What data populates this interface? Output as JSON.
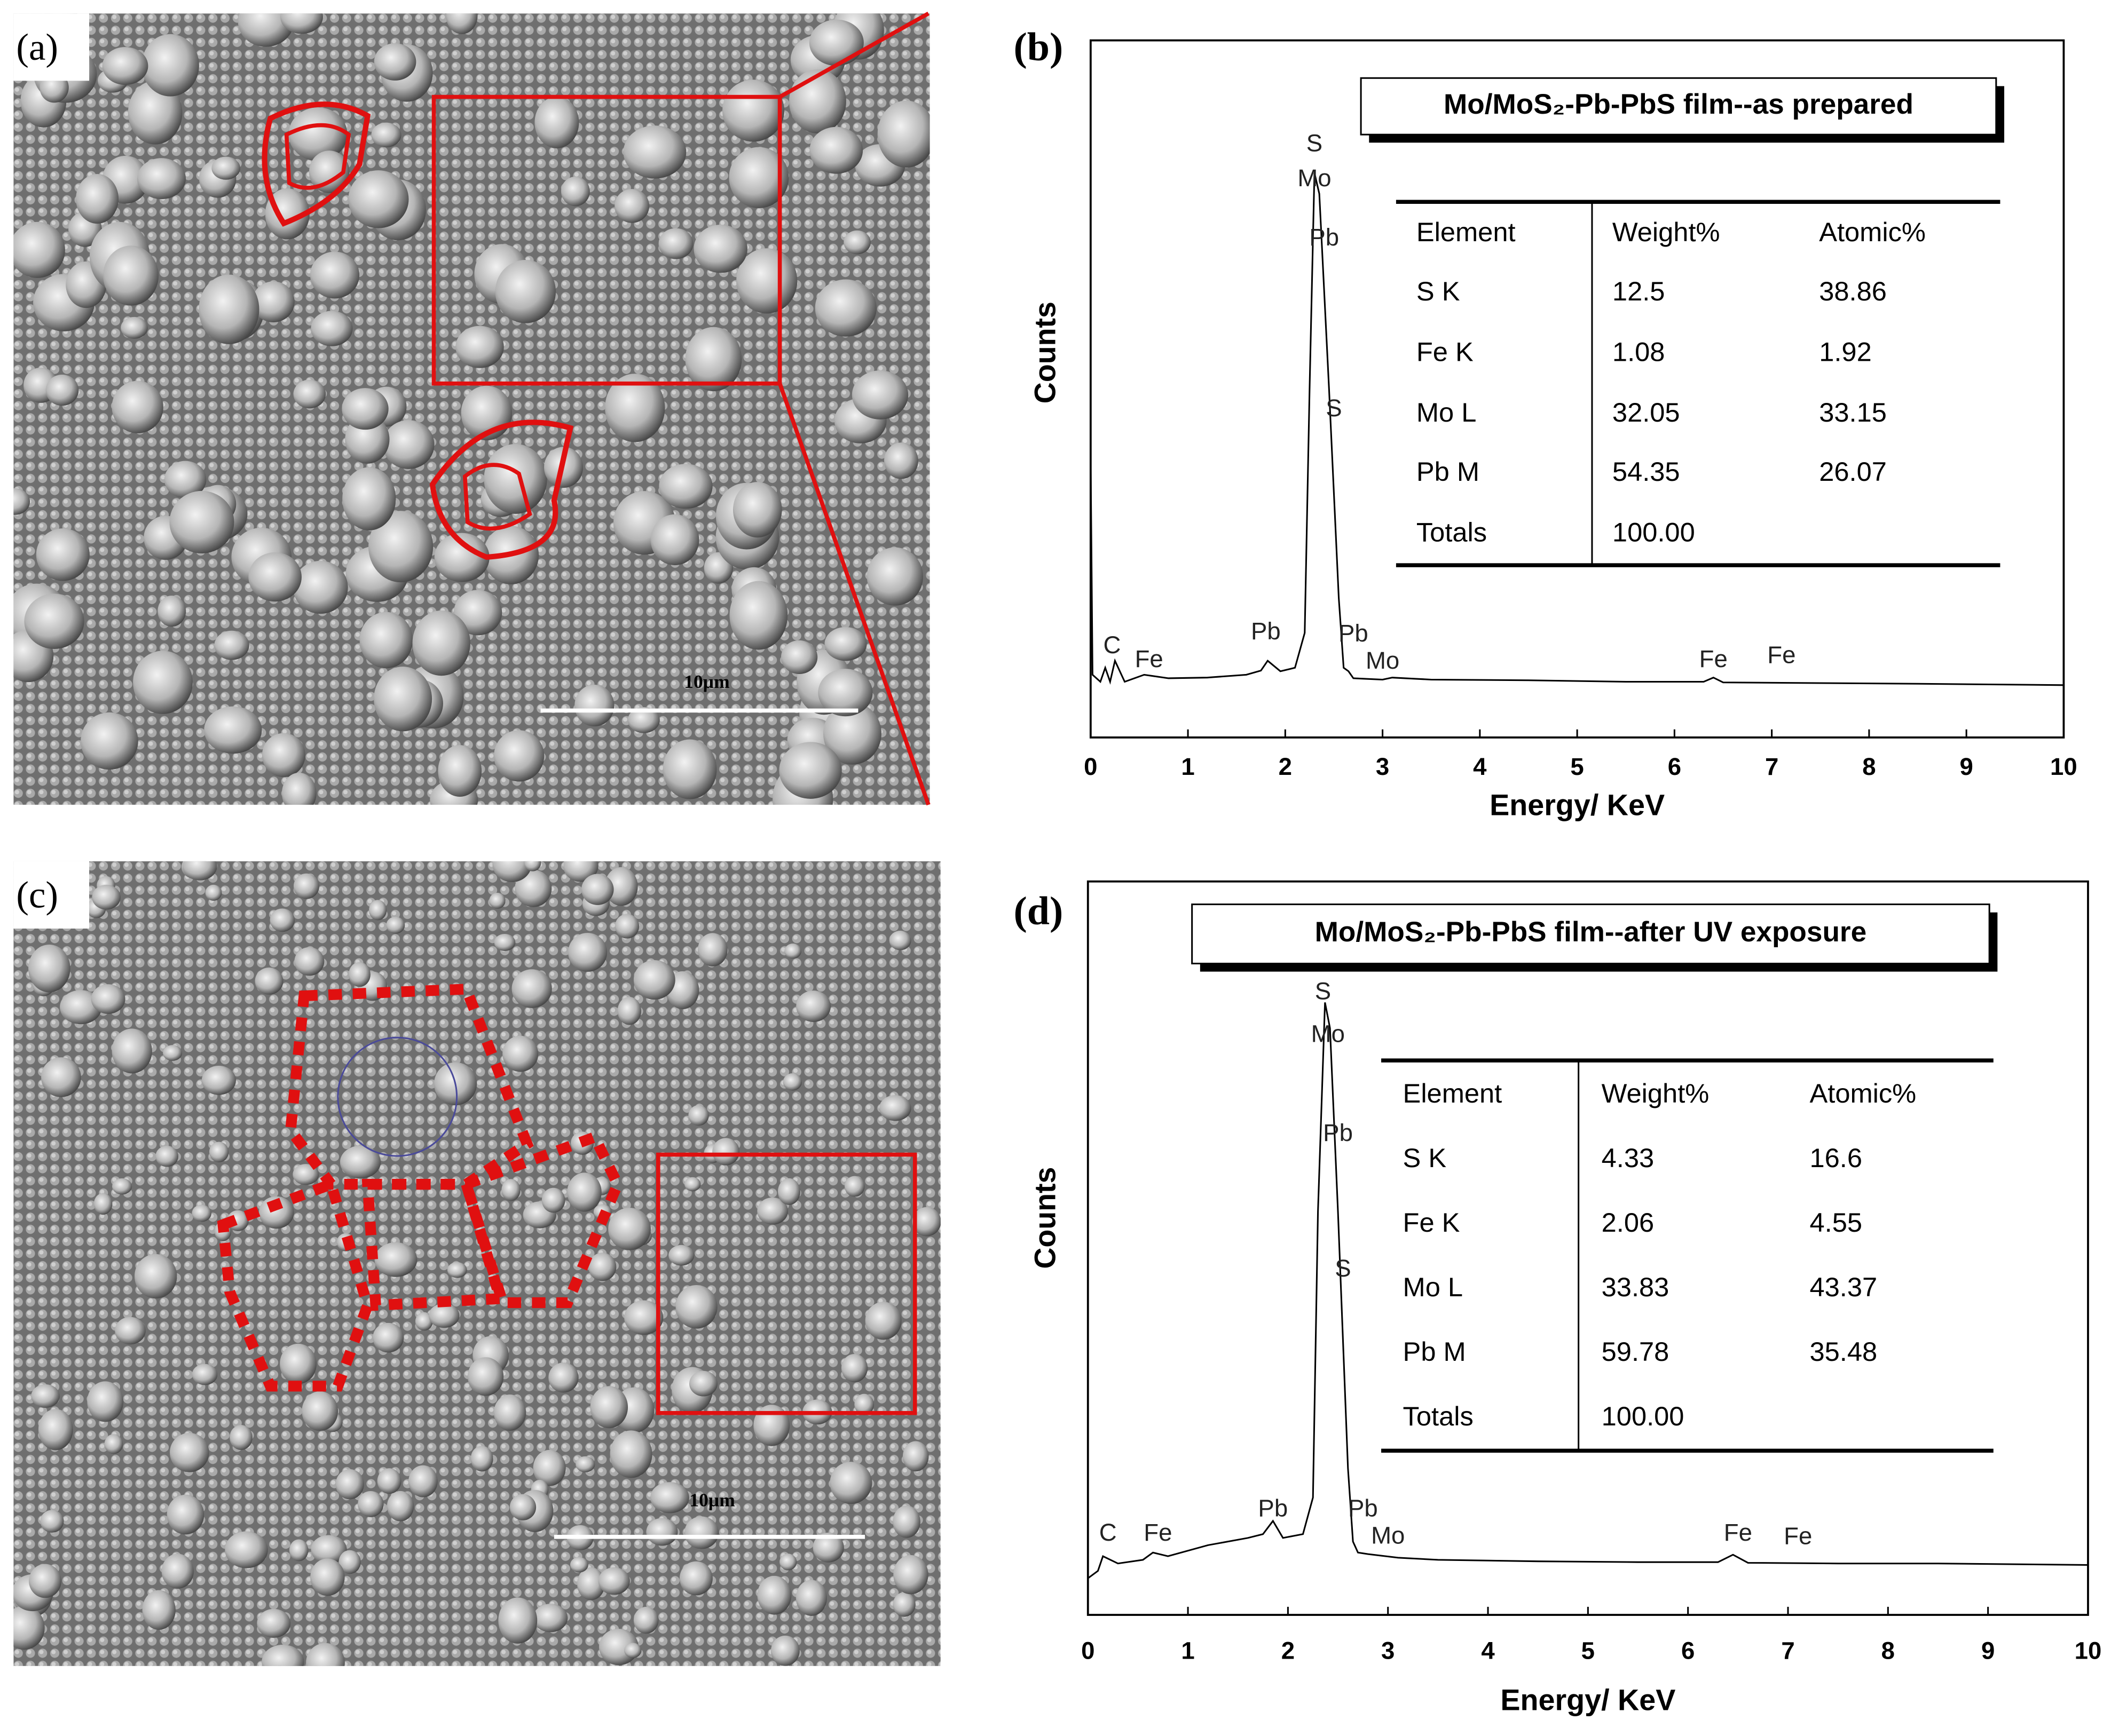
{
  "panels": {
    "a": {
      "label": "(a)",
      "scale_bar": "10µm"
    },
    "c": {
      "label": "(c)",
      "scale_bar": "10µm"
    }
  },
  "chart_data": [
    {
      "type": "line",
      "panel_label": "(b)",
      "title": "Mo/MoS₂-Pb-PbS film--as prepared",
      "x_label": "Energy/ KeV",
      "y_label": "Counts",
      "xlim": [
        0,
        10
      ],
      "xticks": [
        0,
        1,
        2,
        3,
        4,
        5,
        6,
        7,
        8,
        9,
        10
      ],
      "ylim": [
        0,
        100
      ],
      "color": "#000000",
      "x": [
        0,
        0.02,
        0.1,
        0.15,
        0.2,
        0.25,
        0.35,
        0.55,
        0.8,
        1.2,
        1.6,
        1.75,
        1.82,
        1.95,
        2.1,
        2.2,
        2.25,
        2.3,
        2.35,
        2.45,
        2.55,
        2.6,
        2.65,
        2.7,
        3.0,
        3.1,
        3.5,
        4.5,
        5.5,
        6.3,
        6.4,
        6.5,
        7.5,
        8.5,
        10
      ],
      "values": [
        40,
        9,
        8,
        10,
        8,
        11,
        8,
        9,
        8.5,
        8.6,
        9,
        9.6,
        11,
        9.5,
        10,
        15,
        50,
        81,
        78,
        50,
        20,
        10,
        9.5,
        8.5,
        8.3,
        8.6,
        8.3,
        8.2,
        8,
        8,
        8.6,
        7.9,
        7.8,
        7.7,
        7.5
      ],
      "annotations": [
        {
          "label": "S",
          "x": 2.3,
          "y": 85
        },
        {
          "label": "Mo",
          "x": 2.3,
          "y": 80
        },
        {
          "label": "Pb",
          "x": 2.4,
          "y": 71.5
        },
        {
          "label": "S",
          "x": 2.5,
          "y": 47
        },
        {
          "label": "C",
          "x": 0.22,
          "y": 13
        },
        {
          "label": "Fe",
          "x": 0.6,
          "y": 11
        },
        {
          "label": "Pb",
          "x": 1.8,
          "y": 15
        },
        {
          "label": "Pb",
          "x": 2.7,
          "y": 14.7
        },
        {
          "label": "Mo",
          "x": 3.0,
          "y": 10.8
        },
        {
          "label": "Fe",
          "x": 6.4,
          "y": 11
        },
        {
          "label": "Fe",
          "x": 7.1,
          "y": 11.6
        }
      ],
      "table": {
        "header": [
          "Element",
          "Weight%",
          "Atomic%"
        ],
        "rows": [
          [
            "S K",
            "12.5",
            "38.86"
          ],
          [
            "Fe K",
            "1.08",
            "1.92"
          ],
          [
            "Mo L",
            "32.05",
            "33.15"
          ],
          [
            "Pb M",
            "54.35",
            "26.07"
          ],
          [
            "Totals",
            "100.00"
          ]
        ]
      }
    },
    {
      "type": "line",
      "panel_label": "(d)",
      "title": "Mo/MoS₂-Pb-PbS film--after UV exposure",
      "x_label": "Energy/ KeV",
      "y_label": "Counts",
      "xlim": [
        0,
        10
      ],
      "xticks": [
        0,
        1,
        2,
        3,
        4,
        5,
        6,
        7,
        8,
        9,
        10
      ],
      "ylim": [
        0,
        100
      ],
      "color": "#000000",
      "x": [
        0,
        0.1,
        0.15,
        0.3,
        0.55,
        0.65,
        0.8,
        1.2,
        1.6,
        1.75,
        1.85,
        1.95,
        2.15,
        2.25,
        2.3,
        2.37,
        2.42,
        2.5,
        2.6,
        2.65,
        2.7,
        2.8,
        3.1,
        3.5,
        4.5,
        5.5,
        6.3,
        6.45,
        6.6,
        7.5,
        8.5,
        10
      ],
      "values": [
        5,
        6,
        8,
        7,
        7.5,
        8.5,
        8,
        9.5,
        10.5,
        11,
        12.8,
        10.5,
        11,
        16,
        55,
        83.5,
        80,
        55,
        20,
        10,
        8.5,
        8.3,
        7.8,
        7.5,
        7.3,
        7.2,
        7.2,
        8.2,
        7.1,
        7,
        7,
        6.8
      ],
      "annotations": [
        {
          "label": "S",
          "x": 2.35,
          "y": 84.8
        },
        {
          "label": "Mo",
          "x": 2.4,
          "y": 79
        },
        {
          "label": "Pb",
          "x": 2.5,
          "y": 65.5
        },
        {
          "label": "S",
          "x": 2.55,
          "y": 47
        },
        {
          "label": "C",
          "x": 0.2,
          "y": 11
        },
        {
          "label": "Fe",
          "x": 0.7,
          "y": 11
        },
        {
          "label": "Pb",
          "x": 1.85,
          "y": 14.3
        },
        {
          "label": "Pb",
          "x": 2.75,
          "y": 14.3
        },
        {
          "label": "Mo",
          "x": 3.0,
          "y": 10.6
        },
        {
          "label": "Fe",
          "x": 6.5,
          "y": 11
        },
        {
          "label": "Fe",
          "x": 7.1,
          "y": 10.5
        }
      ],
      "table": {
        "header": [
          "Element",
          "Weight%",
          "Atomic%"
        ],
        "rows": [
          [
            "S K",
            "4.33",
            "16.6"
          ],
          [
            "Fe K",
            "2.06",
            "4.55"
          ],
          [
            "Mo L",
            "33.83",
            "43.37"
          ],
          [
            "Pb M",
            "59.78",
            "35.48"
          ],
          [
            "Totals",
            "100.00"
          ]
        ]
      }
    }
  ]
}
